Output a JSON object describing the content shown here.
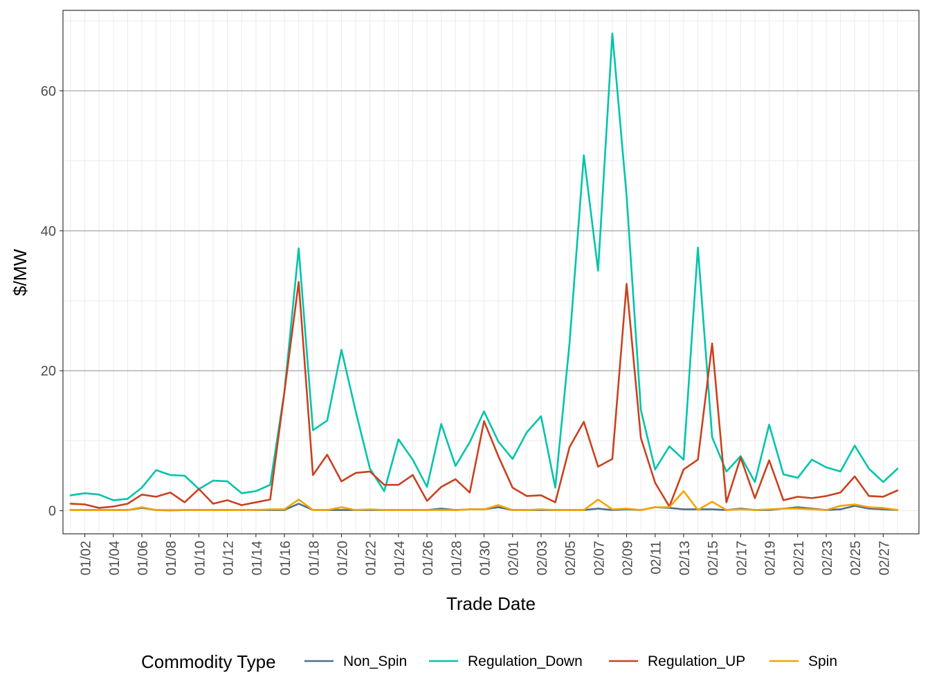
{
  "chart_data": {
    "type": "line",
    "title": "",
    "xlabel": "Trade Date",
    "ylabel": "$/MW",
    "ylim": [
      -3.3,
      71.5
    ],
    "y_ticks": [
      0,
      20,
      40,
      60
    ],
    "y_tick_labels": [
      "0",
      "20",
      "40",
      "60"
    ],
    "x": [
      "01/01",
      "01/02",
      "01/03",
      "01/04",
      "01/05",
      "01/06",
      "01/07",
      "01/08",
      "01/09",
      "01/10",
      "01/11",
      "01/12",
      "01/13",
      "01/14",
      "01/15",
      "01/16",
      "01/17",
      "01/18",
      "01/19",
      "01/20",
      "01/21",
      "01/22",
      "01/23",
      "01/24",
      "01/25",
      "01/26",
      "01/27",
      "01/28",
      "01/29",
      "01/30",
      "01/31",
      "02/01",
      "02/02",
      "02/03",
      "02/04",
      "02/05",
      "02/06",
      "02/07",
      "02/08",
      "02/09",
      "02/10",
      "02/11",
      "02/12",
      "02/13",
      "02/14",
      "02/15",
      "02/16",
      "02/17",
      "02/18",
      "02/19",
      "02/20",
      "02/21",
      "02/22",
      "02/23",
      "02/24",
      "02/25",
      "02/26",
      "02/27",
      "02/28"
    ],
    "x_tick_labels": [
      "01/02",
      "01/04",
      "01/06",
      "01/08",
      "01/10",
      "01/12",
      "01/14",
      "01/16",
      "01/18",
      "01/20",
      "01/22",
      "01/24",
      "01/26",
      "01/28",
      "01/30",
      "02/01",
      "02/03",
      "02/05",
      "02/07",
      "02/09",
      "02/11",
      "02/13",
      "02/15",
      "02/17",
      "02/19",
      "02/21",
      "02/23",
      "02/25",
      "02/27"
    ],
    "grid": true,
    "legend": {
      "title": "Commodity Type",
      "position": "bottom"
    },
    "series": [
      {
        "name": "Non_Spin",
        "color": "#4f7085",
        "values": [
          0.1,
          0.1,
          0.1,
          0.1,
          0.1,
          0.4,
          0.1,
          0.05,
          0.1,
          0.1,
          0.1,
          0.1,
          0.1,
          0.1,
          0.1,
          0.1,
          1.0,
          0.1,
          0.1,
          0.1,
          0.1,
          0.1,
          0.1,
          0.1,
          0.1,
          0.1,
          0.3,
          0.1,
          0.2,
          0.2,
          0.5,
          0.1,
          0.1,
          0.1,
          0.1,
          0.1,
          0.1,
          0.3,
          0.1,
          0.2,
          0.1,
          0.5,
          0.4,
          0.2,
          0.2,
          0.2,
          0.1,
          0.3,
          0.1,
          0.1,
          0.3,
          0.5,
          0.3,
          0.1,
          0.2,
          0.7,
          0.3,
          0.2,
          0.1
        ]
      },
      {
        "name": "Regulation_Down",
        "color": "#00c4aa",
        "values": [
          2.2,
          2.5,
          2.3,
          1.5,
          1.7,
          3.3,
          5.8,
          5.1,
          5.0,
          3.1,
          4.3,
          4.2,
          2.5,
          2.8,
          3.7,
          17.0,
          37.5,
          11.5,
          12.9,
          23.0,
          14.2,
          6.0,
          2.8,
          10.2,
          7.3,
          3.4,
          12.4,
          6.4,
          9.8,
          14.2,
          9.9,
          7.4,
          11.2,
          13.5,
          3.3,
          24.0,
          50.8,
          34.3,
          68.2,
          45.0,
          14.4,
          5.9,
          9.2,
          7.3,
          37.6,
          10.5,
          5.6,
          7.8,
          4.1,
          12.3,
          5.2,
          4.7,
          7.3,
          6.2,
          5.6,
          9.3,
          6.0,
          4.1,
          6.0
        ]
      },
      {
        "name": "Regulation_UP",
        "color": "#c9411e",
        "values": [
          1.0,
          0.9,
          0.4,
          0.6,
          1.0,
          2.3,
          2.0,
          2.6,
          1.2,
          3.1,
          1.0,
          1.5,
          0.8,
          1.2,
          1.6,
          17.0,
          32.7,
          5.1,
          8.0,
          4.2,
          5.4,
          5.6,
          3.7,
          3.7,
          5.1,
          1.4,
          3.4,
          4.5,
          2.6,
          12.8,
          7.8,
          3.3,
          2.1,
          2.2,
          1.2,
          9.1,
          12.7,
          6.3,
          7.4,
          32.4,
          10.4,
          4.0,
          0.6,
          5.9,
          7.3,
          23.9,
          1.2,
          7.6,
          1.8,
          7.2,
          1.5,
          2.0,
          1.8,
          2.1,
          2.6,
          4.9,
          2.1,
          2.0,
          2.9
        ]
      },
      {
        "name": "Spin",
        "color": "#f5a400",
        "values": [
          0.1,
          0.1,
          0.1,
          0.1,
          0.1,
          0.5,
          0.1,
          0.1,
          0.1,
          0.1,
          0.1,
          0.1,
          0.1,
          0.1,
          0.2,
          0.2,
          1.6,
          0.1,
          0.1,
          0.5,
          0.1,
          0.2,
          0.1,
          0.1,
          0.1,
          0.1,
          0.1,
          0.1,
          0.2,
          0.2,
          0.8,
          0.1,
          0.1,
          0.2,
          0.1,
          0.1,
          0.1,
          1.6,
          0.2,
          0.3,
          0.1,
          0.5,
          0.5,
          2.8,
          0.1,
          1.3,
          0.1,
          0.2,
          0.1,
          0.2,
          0.3,
          0.3,
          0.2,
          0.1,
          0.7,
          0.9,
          0.5,
          0.4,
          0.1
        ]
      }
    ]
  }
}
